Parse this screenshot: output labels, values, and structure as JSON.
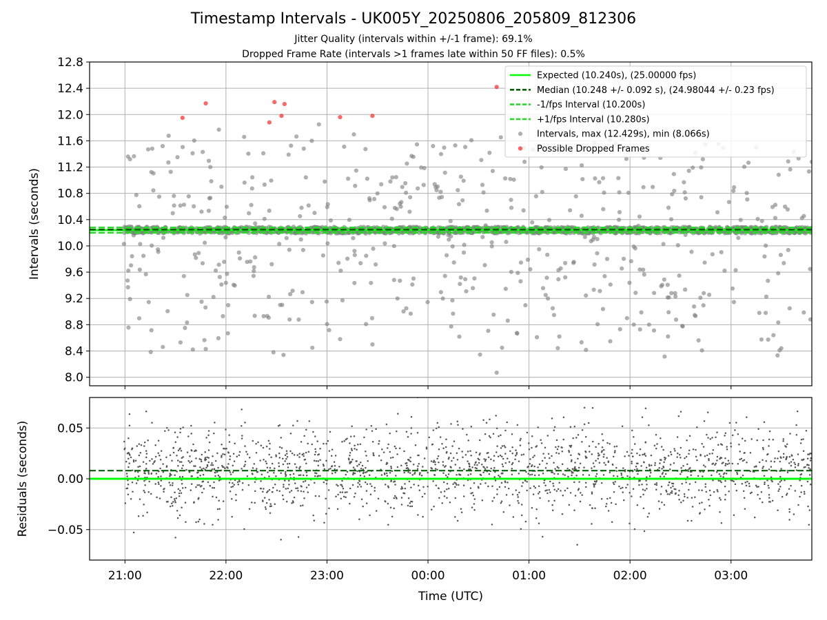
{
  "figure": {
    "title": "Timestamp Intervals - UK005Y_20250806_205809_812306",
    "subtitle_1": "Jitter Quality (intervals within +/-1 frame): 69.1%",
    "subtitle_2": "Dropped Frame Rate (intervals >1 frames late within 50 FF files): 0.5%"
  },
  "colors": {
    "expected": "#00ff00",
    "median": "#006400",
    "fps_interval": "#22dd22",
    "intervals": "#808080",
    "dropped": "#ff0000",
    "residual_points": "#555555",
    "grid": "#b0b0b0"
  },
  "chart_data": [
    {
      "type": "scatter",
      "ylabel": "Intervals (seconds)",
      "xlabel": "",
      "xlim": [
        20.65,
        27.8
      ],
      "ylim": [
        7.87,
        12.8
      ],
      "yticks": [
        8.0,
        8.4,
        8.8,
        9.2,
        9.6,
        10.0,
        10.4,
        10.8,
        11.2,
        11.6,
        12.0,
        12.4,
        12.8
      ],
      "ytick_labels": [
        "8.0",
        "8.4",
        "8.8",
        "9.2",
        "9.6",
        "10.0",
        "10.4",
        "10.8",
        "11.2",
        "11.6",
        "12.0",
        "12.4",
        "12.8"
      ],
      "grid": true,
      "legend_position": "top-right",
      "lines": [
        {
          "name": "Expected (10.240s), (25.00000 fps)",
          "y": 10.24,
          "style": "solid",
          "color": "#00ff00"
        },
        {
          "name": "Median (10.248 +/- 0.092 s), (24.98044 +/- 0.23 fps)",
          "y": 10.248,
          "style": "dashed",
          "color": "#006400"
        },
        {
          "name": "-1/fps Interval (10.200s)",
          "y": 10.2,
          "style": "dashed",
          "color": "#22dd22"
        },
        {
          "name": "+1/fps Interval (10.280s)",
          "y": 10.28,
          "style": "dashed",
          "color": "#22dd22"
        }
      ],
      "series": [
        {
          "name": "Intervals, max (12.429s), min (8.066s)",
          "seed": 20250806,
          "count": 1850,
          "tight_fraction": 0.74,
          "tight_range": [
            10.19,
            10.29
          ],
          "spread_range": [
            8.3,
            11.7
          ],
          "x_range": [
            20.99,
            27.8
          ],
          "max": 12.429,
          "min": 8.066,
          "points": [
            {
              "x": 20.99,
              "y": 10.03
            },
            {
              "x": 21.03,
              "y": 11.36
            },
            {
              "x": 21.05,
              "y": 11.32
            },
            {
              "x": 21.05,
              "y": 9.19
            },
            {
              "x": 21.03,
              "y": 9.37
            },
            {
              "x": 21.15,
              "y": 10.22
            },
            {
              "x": 21.23,
              "y": 11.47
            },
            {
              "x": 21.27,
              "y": 11.48
            },
            {
              "x": 21.33,
              "y": 9.91
            },
            {
              "x": 21.43,
              "y": 11.27
            },
            {
              "x": 21.52,
              "y": 11.35
            },
            {
              "x": 21.55,
              "y": 8.53
            },
            {
              "x": 21.67,
              "y": 11.41
            },
            {
              "x": 21.77,
              "y": 11.43
            },
            {
              "x": 21.8,
              "y": 8.43
            },
            {
              "x": 21.93,
              "y": 11.77
            },
            {
              "x": 21.97,
              "y": 8.93
            },
            {
              "x": 22.18,
              "y": 11.66
            },
            {
              "x": 22.37,
              "y": 11.41
            },
            {
              "x": 22.47,
              "y": 8.38
            },
            {
              "x": 22.57,
              "y": 8.34
            },
            {
              "x": 22.62,
              "y": 11.39
            },
            {
              "x": 22.77,
              "y": 11.48
            },
            {
              "x": 22.85,
              "y": 11.6
            },
            {
              "x": 22.92,
              "y": 11.85
            },
            {
              "x": 23.13,
              "y": 8.58
            },
            {
              "x": 23.17,
              "y": 11.51
            },
            {
              "x": 23.45,
              "y": 8.5
            },
            {
              "x": 23.9,
              "y": 10.25
            },
            {
              "x": 24.05,
              "y": 11.52
            },
            {
              "x": 24.27,
              "y": 11.53
            },
            {
              "x": 24.68,
              "y": 8.07
            },
            {
              "x": 24.95,
              "y": 11.49
            },
            {
              "x": 25.3,
              "y": 8.62
            },
            {
              "x": 25.65,
              "y": 11.57
            },
            {
              "x": 25.97,
              "y": 8.9
            },
            {
              "x": 26.3,
              "y": 11.34
            },
            {
              "x": 26.45,
              "y": 9.23
            },
            {
              "x": 26.73,
              "y": 9.28
            },
            {
              "x": 27.25,
              "y": 11.5
            },
            {
              "x": 27.28,
              "y": 8.98
            },
            {
              "x": 27.42,
              "y": 8.64
            },
            {
              "x": 27.62,
              "y": 11.43
            },
            {
              "x": 27.8,
              "y": 11.28
            }
          ]
        },
        {
          "name": "Possible Dropped Frames",
          "points": [
            {
              "x": 21.57,
              "y": 11.95
            },
            {
              "x": 21.8,
              "y": 12.17
            },
            {
              "x": 22.43,
              "y": 11.88
            },
            {
              "x": 22.48,
              "y": 12.19
            },
            {
              "x": 22.55,
              "y": 11.98
            },
            {
              "x": 22.58,
              "y": 12.16
            },
            {
              "x": 23.13,
              "y": 11.96
            },
            {
              "x": 23.45,
              "y": 11.98
            },
            {
              "x": 24.68,
              "y": 12.42
            }
          ]
        }
      ]
    },
    {
      "type": "scatter",
      "ylabel": "Residuals (seconds)",
      "xlabel": "Time (UTC)",
      "xlim": [
        20.65,
        27.8
      ],
      "ylim": [
        -0.08,
        0.08
      ],
      "yticks": [
        -0.05,
        0.0,
        0.05
      ],
      "ytick_labels": [
        "−0.05",
        "0.00",
        "0.05"
      ],
      "xticks": [
        21,
        22,
        23,
        24,
        25,
        26,
        27
      ],
      "xtick_labels": [
        "21:00",
        "22:00",
        "23:00",
        "00:00",
        "01:00",
        "02:00",
        "03:00"
      ],
      "grid": true,
      "lines": [
        {
          "y": 0.0,
          "style": "solid",
          "color": "#00ff00"
        },
        {
          "y": 0.008,
          "style": "dashed",
          "color": "#006400"
        }
      ],
      "series": [
        {
          "seed": 8123,
          "count": 1850,
          "x_range": [
            20.99,
            27.8
          ],
          "center": 0.008,
          "sigma": 0.028,
          "clip": [
            -0.082,
            0.082
          ]
        }
      ]
    }
  ]
}
